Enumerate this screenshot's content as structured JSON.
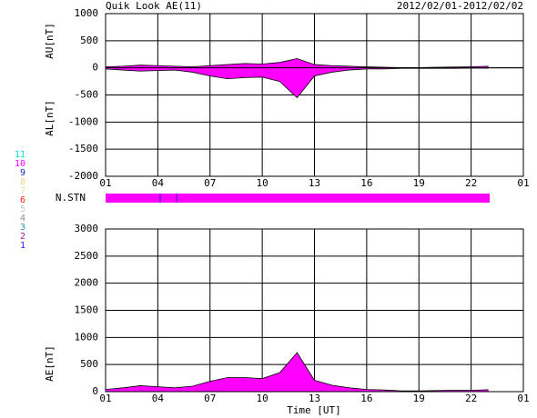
{
  "header": {
    "title": "Quik Look AE(11)",
    "dates": "2012/02/01-2012/02/02",
    "xlabel": "Time [UT]"
  },
  "station": {
    "label": "N.STN",
    "color": "#ff00ff",
    "levels": [
      {
        "label": "11",
        "color": "#00e0e0"
      },
      {
        "label": "10",
        "color": "#ff00ff"
      },
      {
        "label": "9",
        "color": "#2020c0"
      },
      {
        "label": "8",
        "color": "#e8d890"
      },
      {
        "label": "7",
        "color": "#d8e890"
      },
      {
        "label": "6",
        "color": "#ff2020"
      },
      {
        "label": "5",
        "color": "#c8c8c8"
      },
      {
        "label": "4",
        "color": "#909090"
      },
      {
        "label": "3",
        "color": "#20a0a0"
      },
      {
        "label": "2",
        "color": "#a020a0"
      },
      {
        "label": "1",
        "color": "#2020ff"
      }
    ]
  },
  "chart_data": [
    {
      "type": "area",
      "ylabels": [
        "AU[nT]",
        "AL[nT]"
      ],
      "x": [
        0,
        1,
        2,
        3,
        4,
        5,
        6,
        7,
        8,
        9,
        10,
        11,
        12,
        13,
        14,
        15,
        16,
        17,
        18,
        19,
        20,
        21,
        22
      ],
      "series": [
        {
          "color": "#ff00ff",
          "values": [
            20,
            30,
            50,
            40,
            30,
            20,
            40,
            60,
            80,
            70,
            100,
            170,
            60,
            40,
            30,
            20,
            10,
            5,
            5,
            10,
            15,
            20,
            30
          ]
        },
        {
          "color": "#ff00ff",
          "values": [
            -20,
            -40,
            -60,
            -50,
            -40,
            -80,
            -150,
            -200,
            -180,
            -170,
            -250,
            -550,
            -150,
            -80,
            -40,
            -20,
            -20,
            -10,
            -10,
            -10,
            -10,
            -5,
            -5
          ]
        }
      ],
      "xlim": [
        0,
        24
      ],
      "xticks": [
        {
          "value": 0,
          "label": "01"
        },
        {
          "value": 3,
          "label": "04"
        },
        {
          "value": 6,
          "label": "07"
        },
        {
          "value": 9,
          "label": "10"
        },
        {
          "value": 12,
          "label": "13"
        },
        {
          "value": 15,
          "label": "16"
        },
        {
          "value": 18,
          "label": "19"
        },
        {
          "value": 21,
          "label": "22"
        },
        {
          "value": 24,
          "label": "01"
        }
      ],
      "ylim": [
        -2000,
        1000
      ],
      "yticks": [
        -2000,
        -1500,
        -1000,
        -500,
        0,
        500,
        1000
      ],
      "grid": true
    },
    {
      "type": "area",
      "ylabels": [
        "AE[nT]"
      ],
      "x": [
        0,
        1,
        2,
        3,
        4,
        5,
        6,
        7,
        8,
        9,
        10,
        11,
        12,
        13,
        14,
        15,
        16,
        17,
        18,
        19,
        20,
        21,
        22
      ],
      "series": [
        {
          "color": "#ff00ff",
          "values": [
            40,
            70,
            110,
            90,
            70,
            100,
            190,
            260,
            260,
            240,
            350,
            720,
            210,
            120,
            70,
            40,
            30,
            15,
            15,
            20,
            25,
            25,
            35
          ]
        }
      ],
      "xlim": [
        0,
        24
      ],
      "xticks": [
        {
          "value": 0,
          "label": "01"
        },
        {
          "value": 3,
          "label": "04"
        },
        {
          "value": 6,
          "label": "07"
        },
        {
          "value": 9,
          "label": "10"
        },
        {
          "value": 12,
          "label": "13"
        },
        {
          "value": 15,
          "label": "16"
        },
        {
          "value": 18,
          "label": "19"
        },
        {
          "value": 21,
          "label": "22"
        },
        {
          "value": 24,
          "label": "01"
        }
      ],
      "ylim": [
        0,
        3000
      ],
      "yticks": [
        0,
        500,
        1000,
        1500,
        2000,
        2500,
        3000
      ],
      "grid": true
    }
  ]
}
